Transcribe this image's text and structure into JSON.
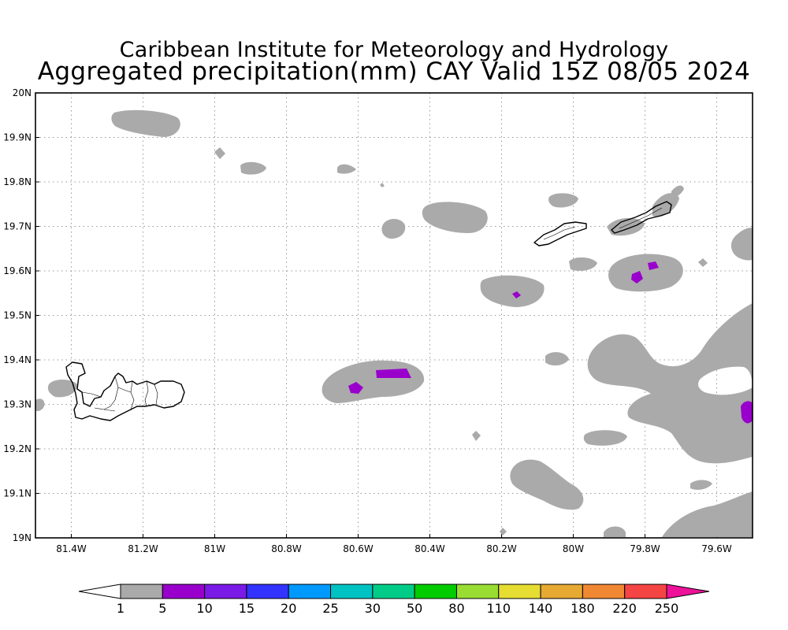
{
  "title": {
    "line1": "Caribbean Institute for Meteorology and Hydrology",
    "line2": "Aggregated precipitation(mm) CAY Valid 15Z 08/05 2024"
  },
  "map": {
    "lon_range": [
      -81.5,
      -79.5
    ],
    "lat_range": [
      19.0,
      20.0
    ],
    "grid": true,
    "lon_ticks": [
      {
        "value": -81.4,
        "label": "81.4W"
      },
      {
        "value": -81.2,
        "label": "81.2W"
      },
      {
        "value": -81.0,
        "label": "81W"
      },
      {
        "value": -80.8,
        "label": "80.8W"
      },
      {
        "value": -80.6,
        "label": "80.6W"
      },
      {
        "value": -80.4,
        "label": "80.4W"
      },
      {
        "value": -80.2,
        "label": "80.2W"
      },
      {
        "value": -80.0,
        "label": "80W"
      },
      {
        "value": -79.8,
        "label": "79.8W"
      },
      {
        "value": -79.6,
        "label": "79.6W"
      }
    ],
    "lat_ticks": [
      {
        "value": 19.0,
        "label": "19N"
      },
      {
        "value": 19.1,
        "label": "19.1N"
      },
      {
        "value": 19.2,
        "label": "19.2N"
      },
      {
        "value": 19.3,
        "label": "19.3N"
      },
      {
        "value": 19.4,
        "label": "19.4N"
      },
      {
        "value": 19.5,
        "label": "19.5N"
      },
      {
        "value": 19.6,
        "label": "19.6N"
      },
      {
        "value": 19.7,
        "label": "19.7N"
      },
      {
        "value": 19.8,
        "label": "19.8N"
      },
      {
        "value": 19.9,
        "label": "19.9N"
      },
      {
        "value": 20.0,
        "label": "20N"
      }
    ],
    "colors": {
      "low": "#aaaaaa",
      "high": "#9900cc",
      "coast": "#000000",
      "grid": "#999999"
    }
  },
  "colorbar": {
    "labels": [
      "1",
      "5",
      "10",
      "15",
      "20",
      "25",
      "30",
      "50",
      "80",
      "110",
      "140",
      "180",
      "220",
      "250"
    ],
    "colors": [
      "#aaaaaa",
      "#9900cc",
      "#7a1ae6",
      "#3333ff",
      "#0099ff",
      "#00c2c2",
      "#00cc88",
      "#00cc00",
      "#99dd33",
      "#e6dd33",
      "#e6aa33",
      "#f08833",
      "#f54444"
    ],
    "under_color": "#ffffff",
    "over_color": "#ee1199"
  }
}
